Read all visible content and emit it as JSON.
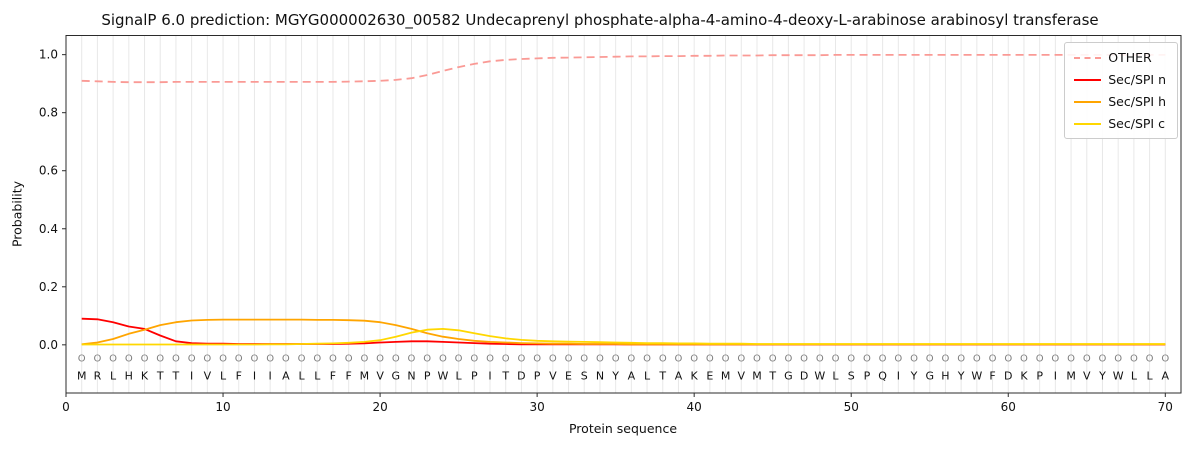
{
  "chart_data": {
    "type": "line",
    "title": "SignalP 6.0 prediction: MGYG000002630_00582 Undecaprenyl phosphate-alpha-4-amino-4-deoxy-L-arabinose arabinosyl transferase",
    "xlabel": "Protein sequence",
    "ylabel": "Probability",
    "xlim": [
      0,
      71
    ],
    "ylim": [
      -0.166,
      1.066
    ],
    "xticks": [
      0,
      10,
      20,
      30,
      40,
      50,
      60,
      70
    ],
    "yticks": [
      "0.0",
      "0.2",
      "0.4",
      "0.6",
      "0.8",
      "1.0"
    ],
    "grid": "vertical line at every residue position",
    "legend_position": "upper right",
    "x_start": 1,
    "marker_char": "O",
    "marker_color": "#7f7f7f",
    "sequence": [
      "M",
      "R",
      "L",
      "H",
      "K",
      "T",
      "T",
      "I",
      "V",
      "L",
      "F",
      "I",
      "I",
      "A",
      "L",
      "L",
      "F",
      "F",
      "M",
      "V",
      "G",
      "N",
      "P",
      "W",
      "L",
      "P",
      "I",
      "T",
      "D",
      "P",
      "V",
      "E",
      "S",
      "N",
      "Y",
      "A",
      "L",
      "T",
      "A",
      "K",
      "E",
      "M",
      "V",
      "M",
      "T",
      "G",
      "D",
      "W",
      "L",
      "S",
      "P",
      "Q",
      "I",
      "Y",
      "G",
      "H",
      "Y",
      "W",
      "F",
      "D",
      "K",
      "P",
      "I",
      "M",
      "V",
      "Y",
      "W",
      "L",
      "L",
      "A"
    ],
    "series": [
      {
        "name": "OTHER",
        "color": "#fa9a95",
        "style": "dashed",
        "values": [
          0.91,
          0.908,
          0.906,
          0.905,
          0.905,
          0.905,
          0.906,
          0.906,
          0.906,
          0.906,
          0.906,
          0.906,
          0.906,
          0.906,
          0.906,
          0.906,
          0.906,
          0.907,
          0.908,
          0.91,
          0.913,
          0.919,
          0.93,
          0.944,
          0.957,
          0.968,
          0.977,
          0.982,
          0.985,
          0.987,
          0.989,
          0.99,
          0.991,
          0.992,
          0.993,
          0.994,
          0.994,
          0.995,
          0.995,
          0.996,
          0.996,
          0.997,
          0.997,
          0.997,
          0.998,
          0.998,
          0.998,
          0.998,
          0.999,
          0.999,
          0.999,
          0.999,
          0.999,
          0.999,
          0.999,
          0.999,
          0.999,
          0.999,
          0.999,
          0.999,
          0.999,
          0.999,
          0.999,
          0.999,
          0.999,
          0.999,
          0.999,
          0.999,
          0.999,
          0.999
        ]
      },
      {
        "name": "Sec/SPI n",
        "color": "#ff0000",
        "style": "solid",
        "values": [
          0.09,
          0.088,
          0.078,
          0.063,
          0.055,
          0.032,
          0.012,
          0.006,
          0.004,
          0.004,
          0.003,
          0.003,
          0.003,
          0.003,
          0.003,
          0.003,
          0.003,
          0.004,
          0.005,
          0.008,
          0.01,
          0.012,
          0.012,
          0.01,
          0.008,
          0.006,
          0.004,
          0.003,
          0.002,
          0.002,
          0.002,
          0.002,
          0.002,
          0.002,
          0.002,
          0.001,
          0.001,
          0.001,
          0.001,
          0.001,
          0.001,
          0.001,
          0.001,
          0.001,
          0.001,
          0.001,
          0.001,
          0.001,
          0.001,
          0.001,
          0.001,
          0.001,
          0.001,
          0.001,
          0.001,
          0.001,
          0.001,
          0.001,
          0.001,
          0.001,
          0.001,
          0.001,
          0.001,
          0.001,
          0.001,
          0.001,
          0.001,
          0.001,
          0.001,
          0.001
        ]
      },
      {
        "name": "Sec/SPI h",
        "color": "#ffa500",
        "style": "solid",
        "values": [
          0.002,
          0.008,
          0.02,
          0.038,
          0.052,
          0.068,
          0.078,
          0.084,
          0.086,
          0.087,
          0.087,
          0.087,
          0.087,
          0.087,
          0.087,
          0.086,
          0.086,
          0.085,
          0.083,
          0.078,
          0.068,
          0.055,
          0.04,
          0.028,
          0.02,
          0.014,
          0.01,
          0.008,
          0.006,
          0.005,
          0.004,
          0.004,
          0.003,
          0.003,
          0.003,
          0.002,
          0.002,
          0.002,
          0.002,
          0.002,
          0.002,
          0.002,
          0.002,
          0.002,
          0.002,
          0.002,
          0.002,
          0.002,
          0.002,
          0.002,
          0.002,
          0.002,
          0.002,
          0.002,
          0.002,
          0.002,
          0.002,
          0.002,
          0.002,
          0.002,
          0.002,
          0.002,
          0.002,
          0.002,
          0.002,
          0.002,
          0.002,
          0.002,
          0.002,
          0.002
        ]
      },
      {
        "name": "Sec/SPI c",
        "color": "#ffd700",
        "style": "solid",
        "values": [
          0.001,
          0.001,
          0.001,
          0.001,
          0.001,
          0.001,
          0.001,
          0.001,
          0.001,
          0.001,
          0.001,
          0.001,
          0.002,
          0.002,
          0.003,
          0.004,
          0.005,
          0.007,
          0.01,
          0.016,
          0.028,
          0.042,
          0.052,
          0.055,
          0.05,
          0.04,
          0.03,
          0.022,
          0.017,
          0.014,
          0.012,
          0.011,
          0.01,
          0.009,
          0.008,
          0.007,
          0.006,
          0.006,
          0.005,
          0.005,
          0.004,
          0.004,
          0.004,
          0.003,
          0.003,
          0.003,
          0.003,
          0.003,
          0.003,
          0.003,
          0.003,
          0.003,
          0.003,
          0.003,
          0.003,
          0.003,
          0.003,
          0.003,
          0.003,
          0.003,
          0.003,
          0.003,
          0.003,
          0.003,
          0.003,
          0.003,
          0.003,
          0.003,
          0.003,
          0.003
        ]
      }
    ]
  }
}
